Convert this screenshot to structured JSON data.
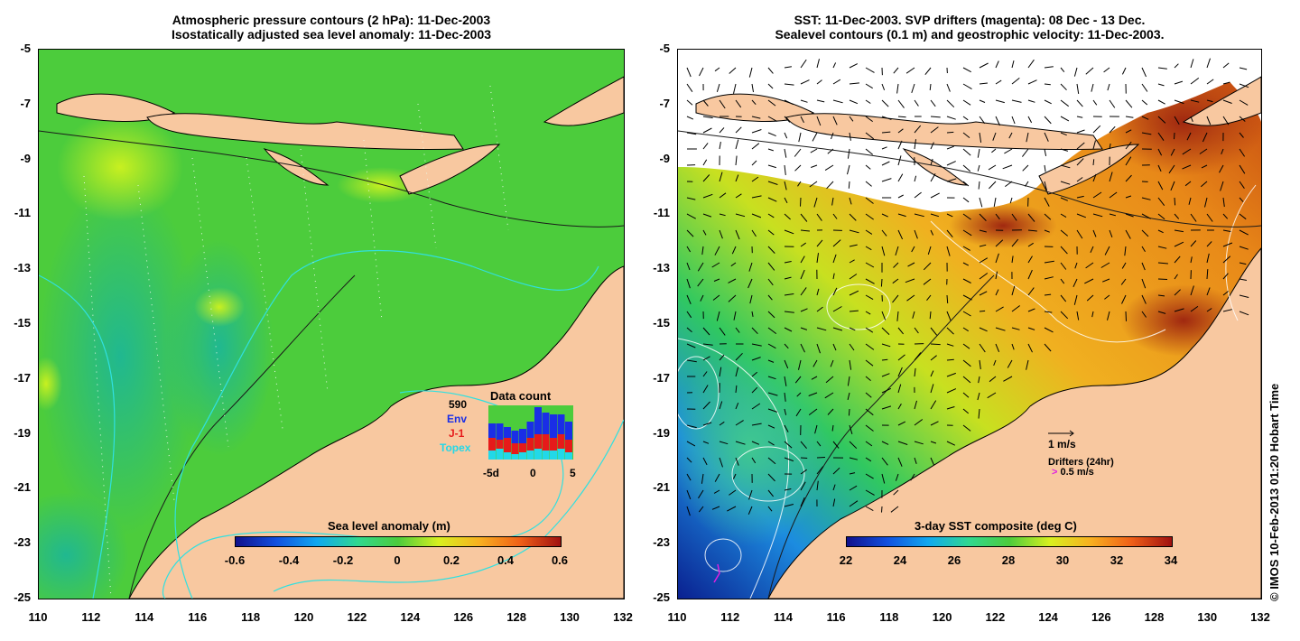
{
  "left_panel": {
    "title_line1": "Atmospheric pressure contours (2 hPa): 11-Dec-2003",
    "title_line2": "Isostatically adjusted sea level anomaly: 11-Dec-2003",
    "colorbar_title": "Sea level anomaly (m)",
    "colorbar_ticks": [
      "-0.6",
      "-0.4",
      "-0.2",
      "0",
      "0.2",
      "0.4",
      "0.6"
    ],
    "data_count": {
      "title": "Data count",
      "total": "590",
      "env_label": "Env",
      "j1_label": "J-1",
      "topex_label": "Topex",
      "x_ticks": [
        "-5d",
        "0",
        "5"
      ],
      "env_color": "#1a2ee6",
      "j1_color": "#e61a1a",
      "topex_color": "#22d8e8"
    }
  },
  "right_panel": {
    "title_line1": "SST: 11-Dec-2003. SVP drifters (magenta): 08 Dec - 13 Dec.",
    "title_line2": "Sealevel contours (0.1 m) and geostrophic velocity: 11-Dec-2003.",
    "colorbar_title": "3-day SST composite (deg C)",
    "colorbar_ticks": [
      "22",
      "24",
      "26",
      "28",
      "30",
      "32",
      "34"
    ],
    "velocity_scale_label": "1 m/s",
    "drifters_label": "Drifters (24hr)",
    "drifters_scale": "0.5 m/s",
    "drifter_color": "#e020e0"
  },
  "axes": {
    "y_ticks": [
      "-5",
      "-7",
      "-9",
      "-11",
      "-13",
      "-15",
      "-17",
      "-19",
      "-21",
      "-23",
      "-25"
    ],
    "x_ticks": [
      "110",
      "112",
      "114",
      "116",
      "118",
      "120",
      "122",
      "124",
      "126",
      "128",
      "130",
      "132"
    ]
  },
  "colors": {
    "land": "#f8c8a0",
    "sea_base": "#4cc83a",
    "contour_cyan": "#30e0e0"
  },
  "credit": "© IMOS 10-Feb-2013 01:20 Hobart Time"
}
